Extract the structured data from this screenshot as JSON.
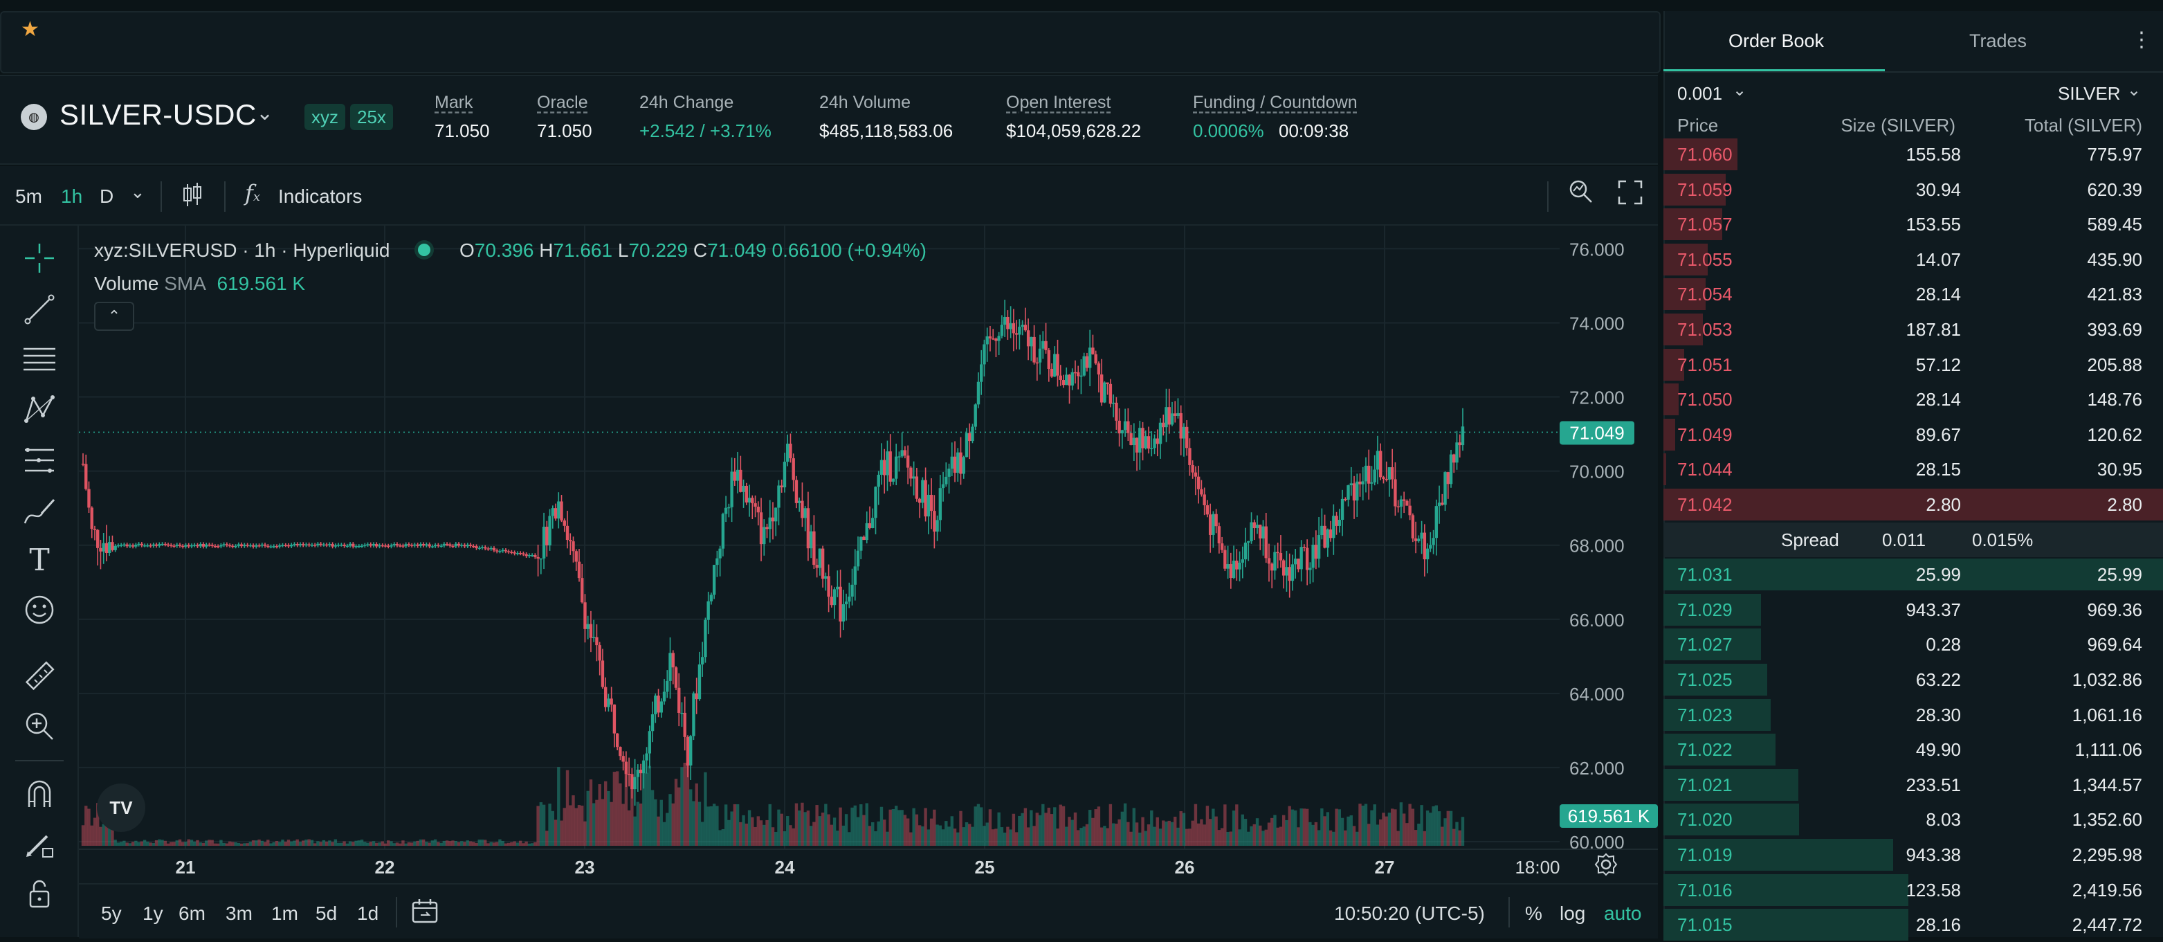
{
  "topbar": {
    "favorite_icon": "star-icon"
  },
  "market": {
    "symbol": "SILVER-USDC",
    "tags": [
      "xyz",
      "25x"
    ],
    "stats": [
      {
        "label": "Mark",
        "value": "71.050"
      },
      {
        "label": "Oracle",
        "value": "71.050"
      },
      {
        "label": "24h Change",
        "value": "+2.542 / +3.71%"
      },
      {
        "label": "24h Volume",
        "value": "$485,118,583.06"
      },
      {
        "label": "Open Interest",
        "value": "$104,059,628.22"
      },
      {
        "label": "Funding / Countdown",
        "value": "0.0006%",
        "value2": "00:09:38"
      }
    ]
  },
  "chart_toolbar": {
    "timeframes": [
      "5m",
      "1h",
      "D"
    ],
    "active_timeframe": "1h",
    "indicators_label": "Indicators"
  },
  "chart": {
    "legend_title": "xyz:SILVERUSD · 1h · Hyperliquid",
    "ohlc": {
      "O": "70.396",
      "H": "71.661",
      "L": "70.229",
      "C": "71.049",
      "change": "0.66100 (+0.94%)"
    },
    "volume_label": "Volume",
    "volume_ind": "SMA",
    "volume_value": "619.561 K",
    "last_price_tag": "71.049",
    "volume_tag": "619.561 K",
    "price_ticks": [
      "76.000",
      "74.000",
      "72.000",
      "70.000",
      "68.000",
      "66.000",
      "64.000",
      "62.000",
      "60.000"
    ],
    "time_ticks": [
      "21",
      "22",
      "23",
      "24",
      "25",
      "26",
      "27",
      "18:00"
    ]
  },
  "bottombar": {
    "ranges": [
      "5y",
      "1y",
      "6m",
      "3m",
      "1m",
      "5d",
      "1d"
    ],
    "clock": "10:50:20 (UTC-5)",
    "pct": "%",
    "log": "log",
    "auto": "auto"
  },
  "orderbook": {
    "tabs": [
      "Order Book",
      "Trades"
    ],
    "tick": "0.001",
    "unit": "SILVER",
    "headers": {
      "price": "Price",
      "size": "Size (SILVER)",
      "total": "Total (SILVER)"
    },
    "asks": [
      {
        "price": "71.060",
        "size": "155.58",
        "total": "775.97",
        "depth": 0.148
      },
      {
        "price": "71.059",
        "size": "30.94",
        "total": "620.39",
        "depth": 0.125
      },
      {
        "price": "71.057",
        "size": "153.55",
        "total": "589.45",
        "depth": 0.118
      },
      {
        "price": "71.055",
        "size": "14.07",
        "total": "435.90",
        "depth": 0.088
      },
      {
        "price": "71.054",
        "size": "28.14",
        "total": "421.83",
        "depth": 0.085
      },
      {
        "price": "71.053",
        "size": "187.81",
        "total": "393.69",
        "depth": 0.079
      },
      {
        "price": "71.051",
        "size": "57.12",
        "total": "205.88",
        "depth": 0.042
      },
      {
        "price": "71.050",
        "size": "28.14",
        "total": "148.76",
        "depth": 0.03
      },
      {
        "price": "71.049",
        "size": "89.67",
        "total": "120.62",
        "depth": 0.024
      },
      {
        "price": "71.044",
        "size": "28.15",
        "total": "30.95",
        "depth": 0.006
      },
      {
        "price": "71.042",
        "size": "2.80",
        "total": "2.80",
        "depth": 1.0
      }
    ],
    "spread": {
      "label": "Spread",
      "value": "0.011",
      "pct": "0.015%"
    },
    "bids": [
      {
        "price": "71.031",
        "size": "25.99",
        "total": "25.99",
        "depth": 1.0
      },
      {
        "price": "71.029",
        "size": "943.37",
        "total": "969.36",
        "depth": 0.195
      },
      {
        "price": "71.027",
        "size": "0.28",
        "total": "969.64",
        "depth": 0.195
      },
      {
        "price": "71.025",
        "size": "63.22",
        "total": "1,032.86",
        "depth": 0.208
      },
      {
        "price": "71.023",
        "size": "28.30",
        "total": "1,061.16",
        "depth": 0.214
      },
      {
        "price": "71.022",
        "size": "49.90",
        "total": "1,111.06",
        "depth": 0.224
      },
      {
        "price": "71.021",
        "size": "233.51",
        "total": "1,344.57",
        "depth": 0.27
      },
      {
        "price": "71.020",
        "size": "8.03",
        "total": "1,352.60",
        "depth": 0.272
      },
      {
        "price": "71.019",
        "size": "943.38",
        "total": "2,295.98",
        "depth": 0.46
      },
      {
        "price": "71.016",
        "size": "123.58",
        "total": "2,419.56",
        "depth": 0.49
      },
      {
        "price": "71.015",
        "size": "28.16",
        "total": "2,447.72",
        "depth": 0.49
      }
    ]
  },
  "colors": {
    "up": "#26a690",
    "down": "#e05563",
    "accent": "#33c3a2"
  }
}
